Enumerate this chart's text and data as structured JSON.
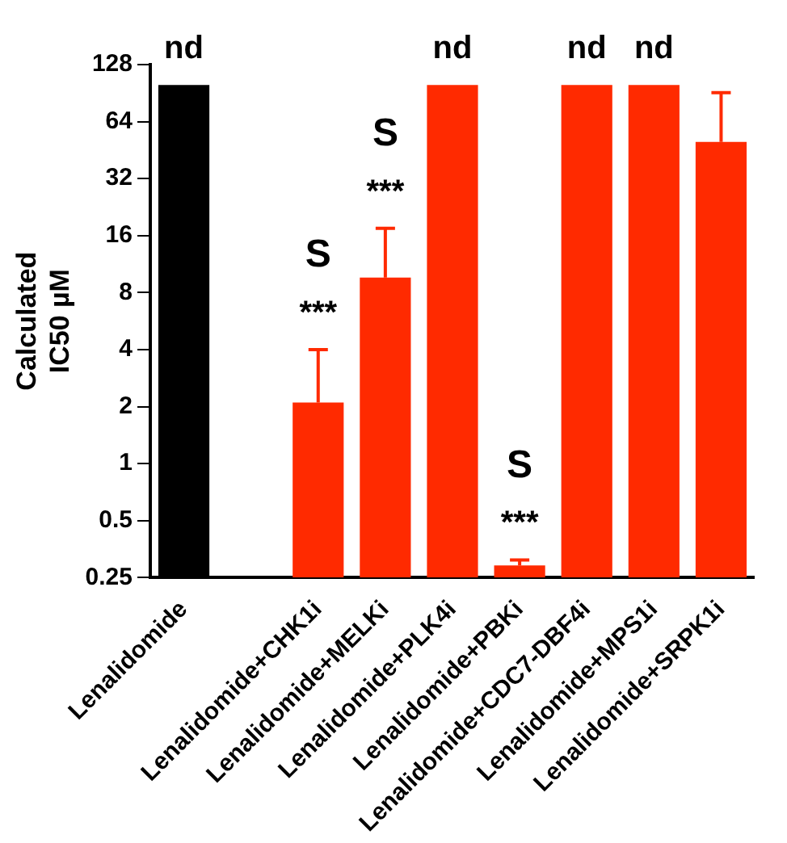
{
  "chart_data": {
    "type": "bar",
    "ylabel": "Calculated\nIC50 µM",
    "categories": [
      "Lenalidomide",
      null,
      "Lenalidomide+CHK1i",
      "Lenalidomide+MELKi",
      "Lenalidomide+PLK4i",
      "Lenalidomide+PBKi",
      "Lenalidomide+CDC7-DBF4i",
      "Lenalidomide+MPS1i",
      "Lenalidomide+SRPK1i"
    ],
    "values": [
      100,
      null,
      2.1,
      9.6,
      100,
      0.29,
      100,
      100,
      50
    ],
    "colors": [
      "#000000",
      "#ff2a00",
      "#ff2a00",
      "#ff2a00",
      "#ff2a00",
      "#ff2a00",
      "#ff2a00",
      "#ff2a00",
      "#ff2a00"
    ],
    "errors": [
      null,
      null,
      [
        2.1,
        4
      ],
      [
        9.6,
        17.5
      ],
      null,
      [
        0.29,
        0.31
      ],
      null,
      null,
      [
        50,
        91
      ]
    ],
    "log": "y",
    "ylim": [
      0.25,
      128
    ],
    "yticks": [
      0.25,
      0.5,
      1,
      2,
      4,
      8,
      16,
      32,
      64,
      128
    ],
    "grid": false,
    "legend": false,
    "annotations": [
      {
        "text": "nd",
        "x": "Lenalidomide",
        "y": 100
      },
      {
        "text": "nd",
        "x": "Lenalidomide+PLK4i",
        "y": 100
      },
      {
        "text": "nd",
        "x": "Lenalidomide+CDC7-DBF4i",
        "y": 100
      },
      {
        "text": "nd",
        "x": "Lenalidomide+MPS1i",
        "y": 100
      },
      {
        "text": "***",
        "x": "Lenalidomide+CHK1i",
        "y": 4
      },
      {
        "text": "S",
        "x": "Lenalidomide+CHK1i",
        "y": 4
      },
      {
        "text": "***",
        "x": "Lenalidomide+MELKi",
        "y": 17.5
      },
      {
        "text": "S",
        "x": "Lenalidomide+MELKi",
        "y": 17.5
      },
      {
        "text": "***",
        "x": "Lenalidomide+PBKi",
        "y": 0.31
      },
      {
        "text": "S",
        "x": "Lenalidomide+PBKi",
        "y": 0.31
      }
    ]
  }
}
